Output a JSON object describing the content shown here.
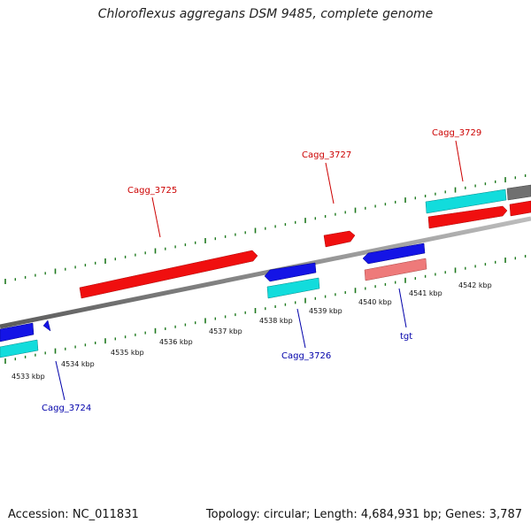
{
  "title": "Chloroflexus aggregans DSM 9485, complete genome",
  "footer": {
    "accession": "Accession: NC_011831",
    "stats": "Topology: circular; Length: 4,684,931 bp; Genes: 3,787"
  },
  "colors": {
    "forward_cds": "#f00f0f",
    "reverse_cds": "#1414e6",
    "forward_feature": "#12dcdc",
    "tRNA": "#ee7a7a",
    "genome_line": "#8a8a8a",
    "other_feature": "#707070",
    "tick": "#1f7a1f",
    "forward_label": "#cc0000",
    "reverse_label": "#0000aa"
  },
  "axis": {
    "unit": "kbp",
    "tick_labels": [
      "4533 kbp",
      "4534 kbp",
      "4535 kbp",
      "4536 kbp",
      "4537 kbp",
      "4538 kbp",
      "4539 kbp",
      "4540 kbp",
      "4541 kbp",
      "4542 kbp"
    ]
  },
  "gene_labels": [
    {
      "id": "cagg3724",
      "text": "Cagg_3724",
      "strand": "reverse"
    },
    {
      "id": "cagg3725",
      "text": "Cagg_3725",
      "strand": "forward"
    },
    {
      "id": "cagg3726",
      "text": "Cagg_3726",
      "strand": "reverse"
    },
    {
      "id": "cagg3727",
      "text": "Cagg_3727",
      "strand": "forward"
    },
    {
      "id": "tgt",
      "text": "tgt",
      "strand": "reverse"
    },
    {
      "id": "cagg3729",
      "text": "Cagg_3729",
      "strand": "forward"
    }
  ]
}
